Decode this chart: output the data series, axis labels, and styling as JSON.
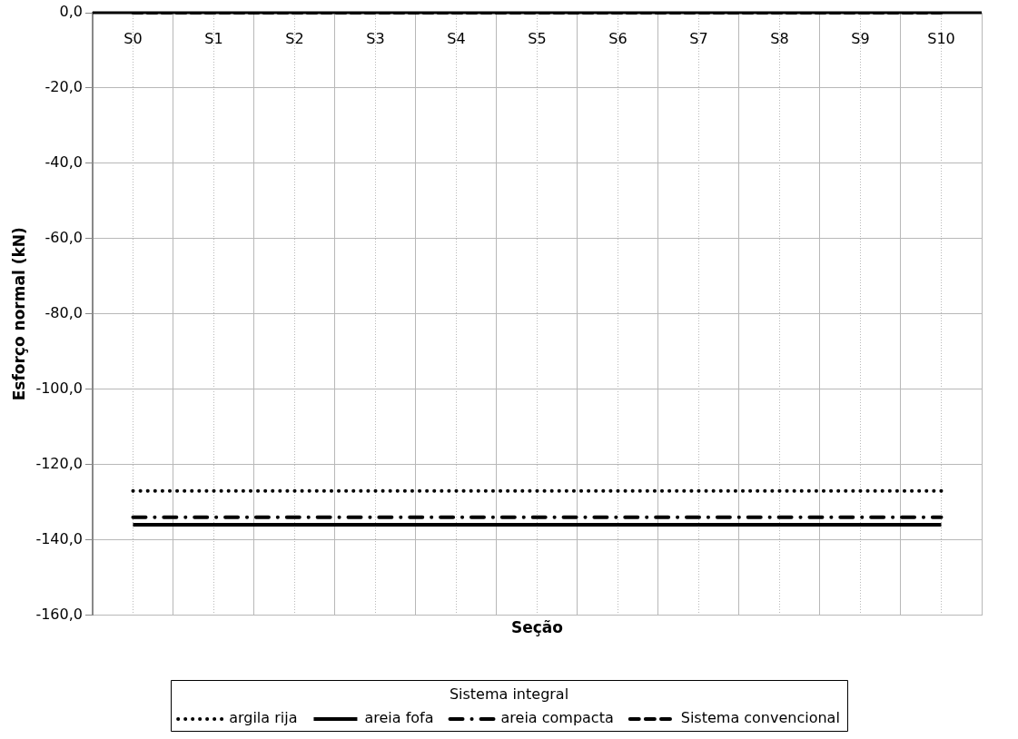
{
  "chart_data": {
    "type": "line",
    "xlabel": "Seção",
    "ylabel": "Esforço normal (kN)",
    "legend_title": "Sistema integral",
    "categories": [
      "S0",
      "S1",
      "S2",
      "S3",
      "S4",
      "S5",
      "S6",
      "S7",
      "S8",
      "S9",
      "S10"
    ],
    "series": [
      {
        "name": "argila rija",
        "color": "#000000",
        "line_style": "dotted",
        "values": [
          -127,
          -127,
          -127,
          -127,
          -127,
          -127,
          -127,
          -127,
          -127,
          -127,
          -127
        ]
      },
      {
        "name": "areia fofa",
        "color": "#000000",
        "line_style": "solid",
        "values": [
          -136,
          -136,
          -136,
          -136,
          -136,
          -136,
          -136,
          -136,
          -136,
          -136,
          -136
        ]
      },
      {
        "name": "areia compacta",
        "color": "#000000",
        "line_style": "dashdot",
        "values": [
          -134,
          -134,
          -134,
          -134,
          -134,
          -134,
          -134,
          -134,
          -134,
          -134,
          -134
        ]
      },
      {
        "name": "Sistema convencional",
        "color": "#000000",
        "line_style": "dashed",
        "values": [
          0,
          0,
          0,
          0,
          0,
          0,
          0,
          0,
          0,
          0,
          0
        ]
      }
    ],
    "ylim": [
      -160,
      0
    ],
    "yticks": [
      {
        "value": 0,
        "label": "0,0"
      },
      {
        "value": -20,
        "label": "-20,0"
      },
      {
        "value": -40,
        "label": "-40,0"
      },
      {
        "value": -60,
        "label": "-60,0"
      },
      {
        "value": -80,
        "label": "-80,0"
      },
      {
        "value": -100,
        "label": "-100,0"
      },
      {
        "value": -120,
        "label": "-120,0"
      },
      {
        "value": -140,
        "label": "-140,0"
      },
      {
        "value": -160,
        "label": "-160,0"
      }
    ],
    "grid": true,
    "legend": "bottom",
    "marker": "none"
  }
}
